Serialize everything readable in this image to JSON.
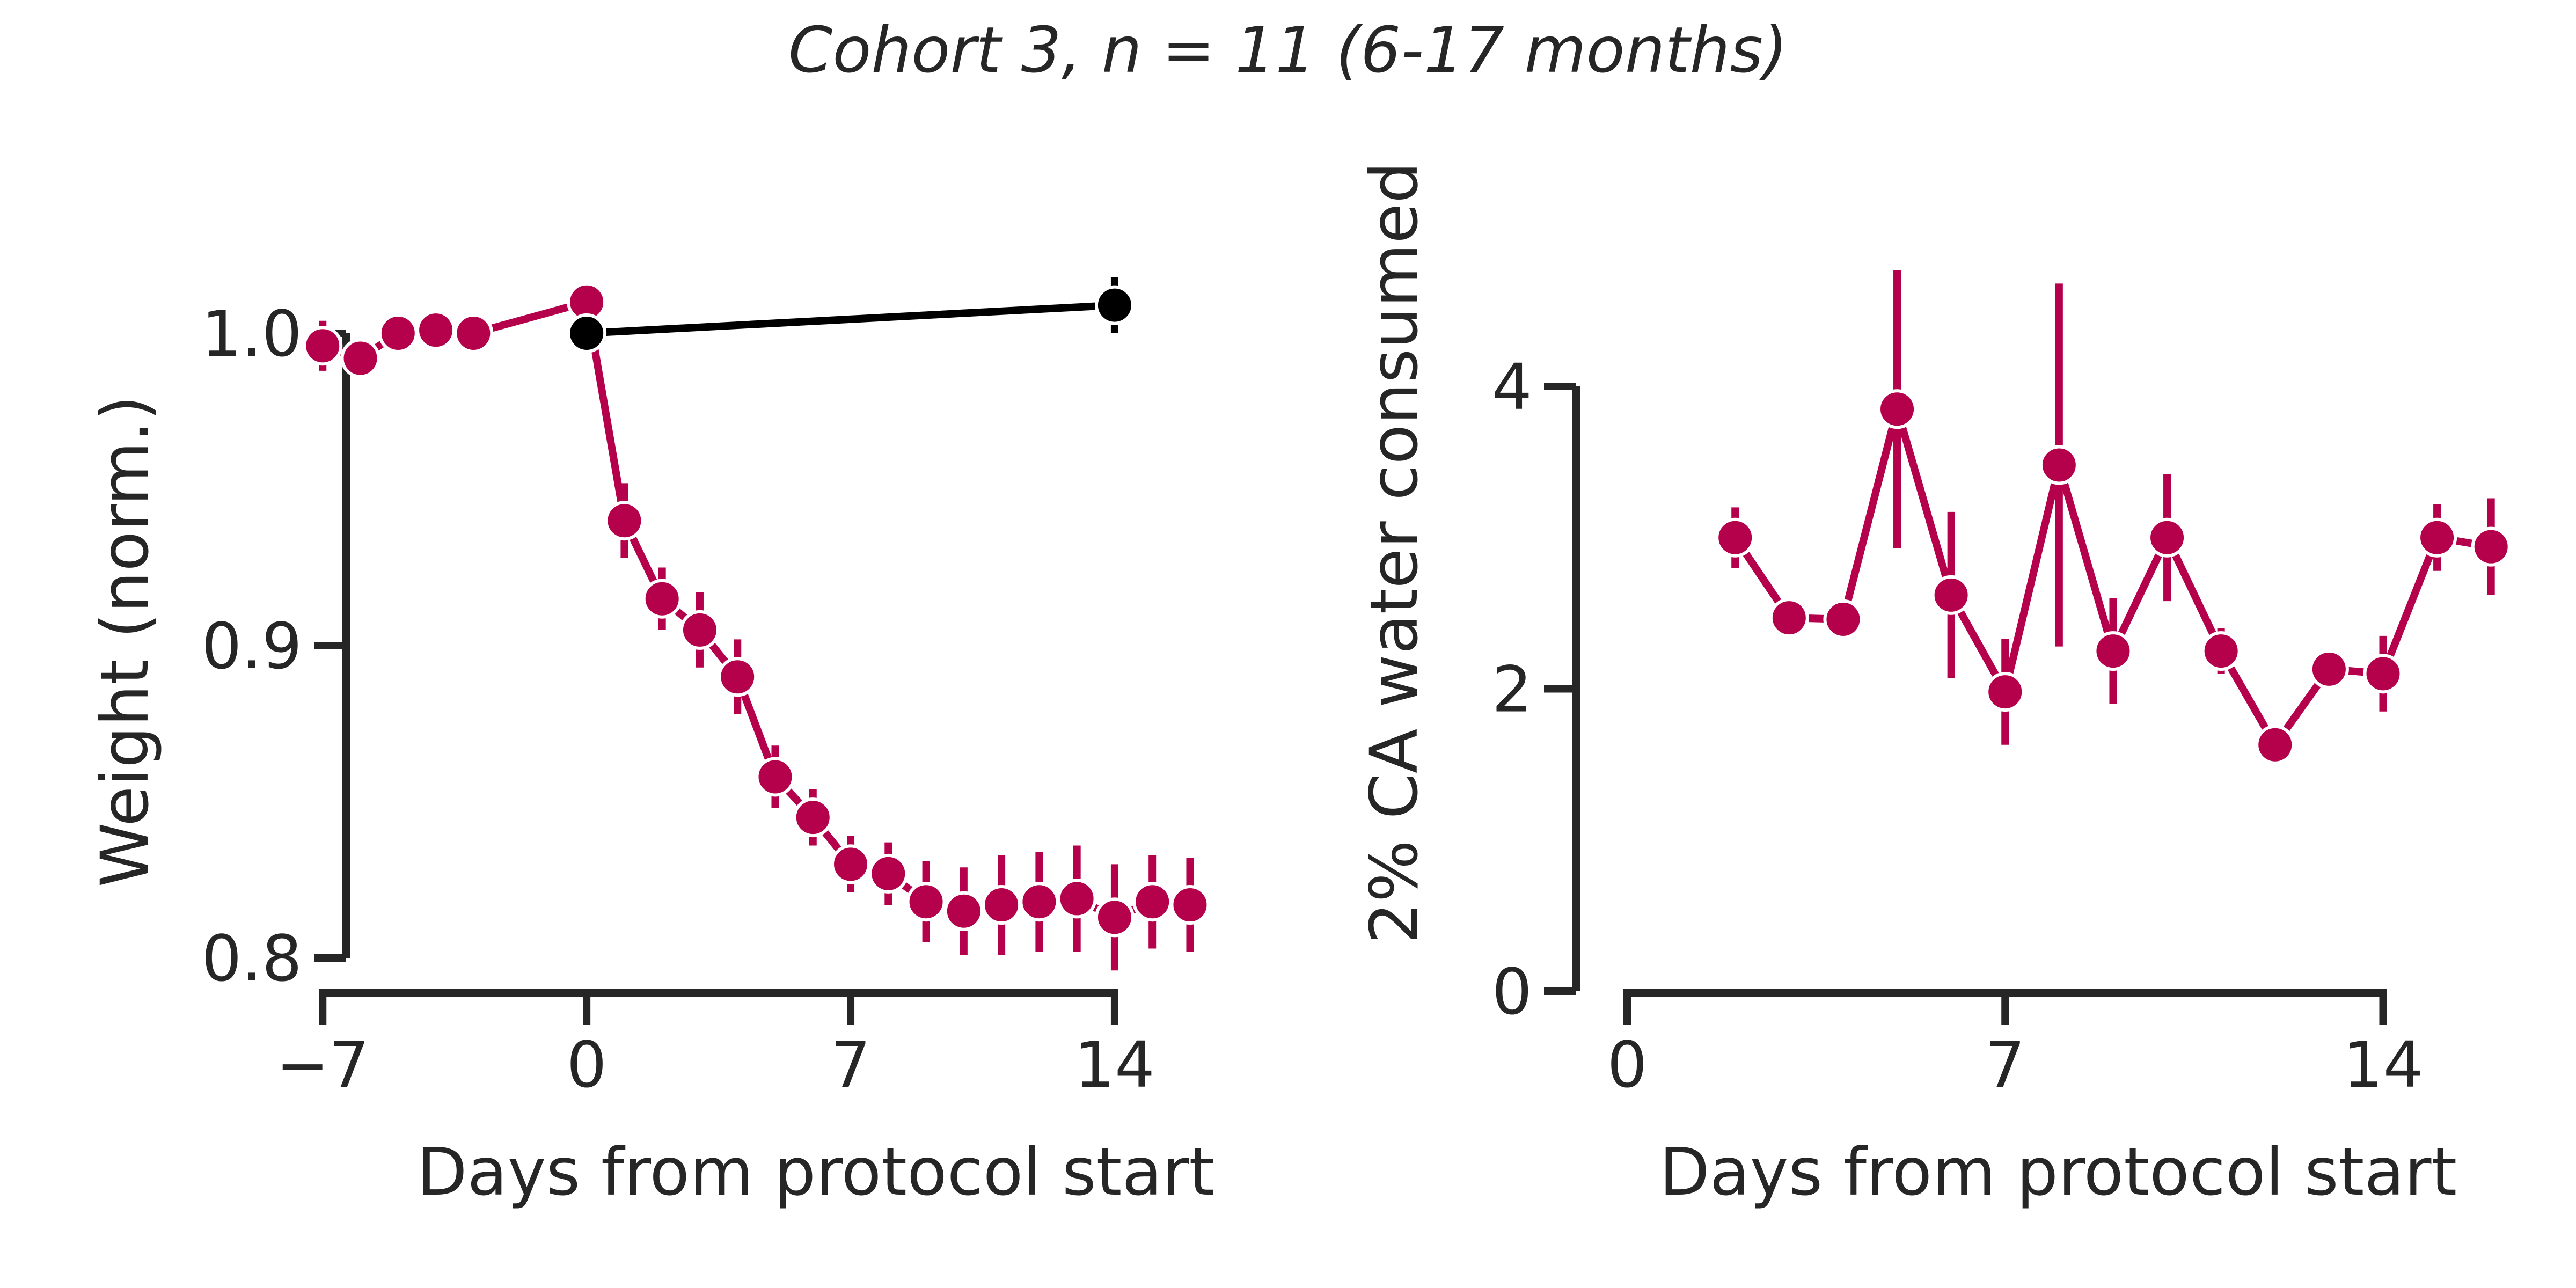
{
  "figure": {
    "suptitle": "Cohort 3, n = 11 (6-17 months)"
  },
  "chart_data": [
    {
      "type": "line",
      "xlabel": "Days from protocol start",
      "ylabel": "Weight (norm.)",
      "xlim": [
        -8,
        18
      ],
      "ylim": [
        0.8,
        1.0
      ],
      "xticks": [
        -7,
        0,
        7,
        14
      ],
      "xtick_labels": [
        "−7",
        "0",
        "7",
        "14"
      ],
      "yticks": [
        0.8,
        0.9,
        1.0
      ],
      "ytick_labels": [
        "0.8",
        "0.9",
        "1.0"
      ],
      "grid": false,
      "series": [
        {
          "color": "#b5004b",
          "x": [
            -7,
            -6,
            -5,
            -4,
            -3,
            0,
            1,
            2,
            3,
            4,
            5,
            6,
            7,
            8,
            9,
            10,
            11,
            12,
            13,
            14,
            15,
            16
          ],
          "y": [
            0.996,
            0.992,
            1.0,
            1.001,
            1.0,
            1.01,
            0.94,
            0.915,
            0.905,
            0.89,
            0.858,
            0.845,
            0.83,
            0.827,
            0.818,
            0.815,
            0.817,
            0.818,
            0.819,
            0.813,
            0.818,
            0.817
          ],
          "err": [
            0.008,
            0.004,
            0.003,
            0.003,
            0.003,
            0.006,
            0.012,
            0.01,
            0.012,
            0.012,
            0.01,
            0.009,
            0.009,
            0.01,
            0.013,
            0.014,
            0.016,
            0.016,
            0.017,
            0.017,
            0.015,
            0.015
          ]
        },
        {
          "color": "#000000",
          "x": [
            0,
            14
          ],
          "y": [
            1.0,
            1.009
          ],
          "err": [
            0.002,
            0.009
          ]
        }
      ]
    },
    {
      "type": "line",
      "xlabel": "Days from protocol start",
      "ylabel": "2% CA water consumed",
      "xlim": [
        0,
        16.5
      ],
      "ylim": [
        0,
        4
      ],
      "xticks": [
        0,
        7,
        14
      ],
      "xtick_labels": [
        "0",
        "7",
        "14"
      ],
      "yticks": [
        0,
        2,
        4
      ],
      "ytick_labels": [
        "0",
        "2",
        "4"
      ],
      "grid": false,
      "series": [
        {
          "color": "#b5004b",
          "x": [
            2,
            3,
            4,
            5,
            6,
            7,
            8,
            9,
            10,
            11,
            12,
            13,
            14,
            15,
            16
          ],
          "y": [
            3.0,
            2.47,
            2.46,
            3.85,
            2.62,
            1.98,
            3.48,
            2.25,
            3.0,
            2.25,
            1.63,
            2.13,
            2.1,
            3.0,
            2.94
          ],
          "err": [
            0.2,
            0.05,
            0.05,
            0.92,
            0.55,
            0.35,
            1.2,
            0.35,
            0.42,
            0.15,
            0.05,
            0.12,
            0.25,
            0.22,
            0.32
          ]
        }
      ]
    }
  ]
}
